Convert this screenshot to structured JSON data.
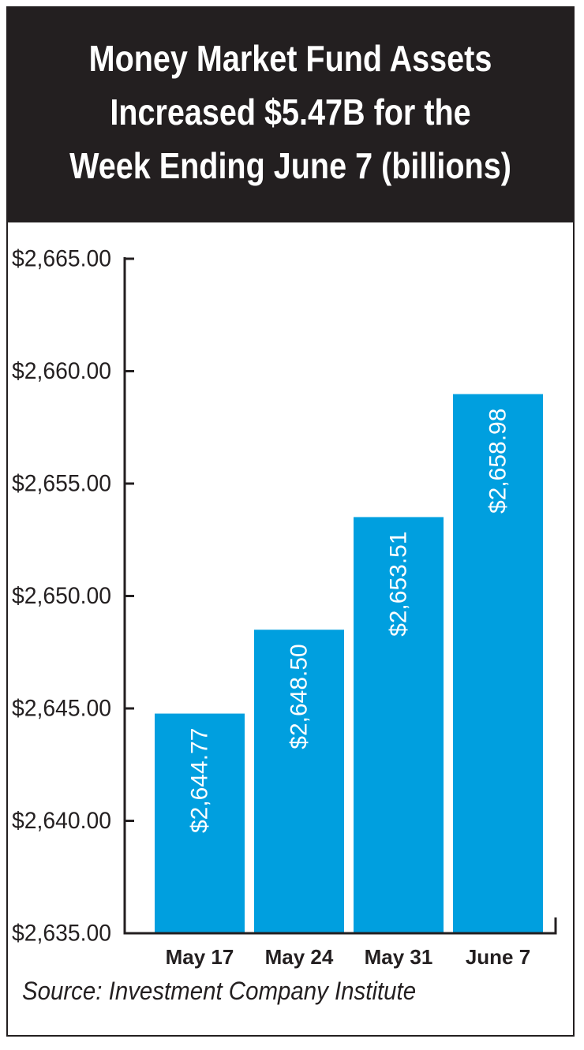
{
  "chart_data": {
    "type": "bar",
    "title": "Money Market Fund Assets\nIncreased $5.47B for the\nWeek Ending June 7 (billions)",
    "categories": [
      "May 17",
      "May 24",
      "May 31",
      "June 7"
    ],
    "values": [
      2644.77,
      2648.5,
      2653.51,
      2658.98
    ],
    "value_labels": [
      "$2,644.77",
      "$2,648.50",
      "$2,653.51",
      "$2,658.98"
    ],
    "y_ticks": [
      2635,
      2640,
      2645,
      2650,
      2655,
      2660,
      2665
    ],
    "y_tick_labels": [
      "$2,635.00",
      "$2,640.00",
      "$2,645.00",
      "$2,650.00",
      "$2,655.00",
      "$2,660.00",
      "$2,665.00"
    ],
    "ylim": [
      2635,
      2665
    ],
    "xlabel": "",
    "ylabel": "",
    "grid": false,
    "bar_color": "#009fdf",
    "label_color": "#ffffff",
    "axis_color": "#231f20",
    "header_color": "#231f20"
  },
  "source": "Source: Investment Company Institute"
}
